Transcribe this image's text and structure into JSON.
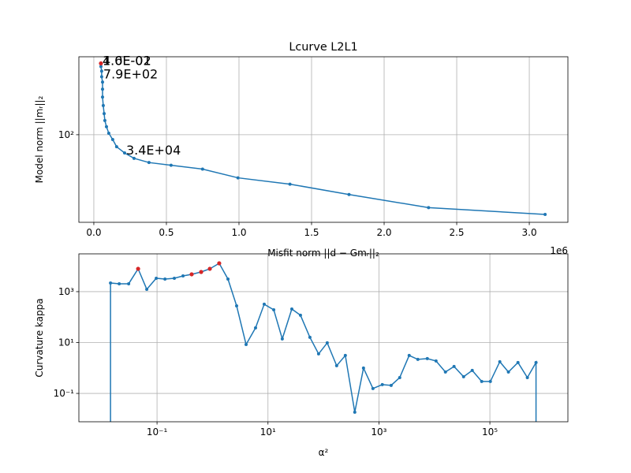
{
  "chart_data": [
    {
      "type": "line",
      "title": "Lcurve L2L1",
      "xlabel": "Misfit norm ||d − Gmᵣ||₂",
      "ylabel": "Model norm ||mᵣ||₂",
      "x_offset_label": "1e6",
      "xlim": [
        -0.103,
        3.266
      ],
      "ylim": [
        18,
        460
      ],
      "ylog": true,
      "grid": true,
      "xticks": [
        {
          "value": 0,
          "label": "0.0"
        },
        0.5,
        {
          "value": 1,
          "label": "1.0"
        },
        1.5,
        {
          "value": 2,
          "label": "2.0"
        },
        2.5,
        {
          "value": 3,
          "label": "3.0"
        }
      ],
      "yticks": [
        {
          "value": 100,
          "label": "10²"
        }
      ],
      "series": [
        {
          "color": "#1f77b4",
          "x": [
            0.049,
            0.049,
            0.054,
            0.054,
            0.06,
            0.06,
            0.06,
            0.065,
            0.071,
            0.076,
            0.087,
            0.103,
            0.13,
            0.157,
            0.212,
            0.277,
            0.38,
            0.532,
            0.749,
            0.993,
            1.351,
            1.758,
            2.306,
            3.109
          ],
          "values": [
            404,
            380,
            347,
            311,
            280,
            244,
            209,
            177,
            151,
            132,
            117,
            103,
            91,
            79,
            70,
            63,
            58,
            55,
            51,
            43,
            38,
            31,
            24,
            21
          ]
        },
        {
          "color": "#d62728",
          "markers_only": true,
          "x": [
            0.049
          ],
          "values": [
            404
          ]
        }
      ],
      "annotations": [
        {
          "text": "1.0E-02",
          "x": 0.049,
          "y": 404
        },
        {
          "text": "4.6E-01",
          "x": 0.049,
          "y": 404
        },
        {
          "text": "7.9E+02",
          "x": 0.054,
          "y": 311
        },
        {
          "text": "3.4E+04",
          "x": 0.212,
          "y": 70
        }
      ]
    },
    {
      "type": "line",
      "xlabel": "α²",
      "ylabel": "Curvature kappa",
      "xlim": [
        0.0039,
        2550000
      ],
      "ylim": [
        0.0077,
        30600
      ],
      "xlog": true,
      "ylog": true,
      "grid": true,
      "xticks": [
        {
          "value": 0.1,
          "label": "10⁻¹"
        },
        {
          "value": 10,
          "label": "10¹"
        },
        {
          "value": 1000,
          "label": "10³"
        },
        {
          "value": 100000,
          "label": "10⁵"
        }
      ],
      "yticks": [
        {
          "value": 0.1,
          "label": "10⁻¹"
        },
        {
          "value": 10,
          "label": "10¹"
        },
        {
          "value": 1000,
          "label": "10³"
        }
      ],
      "series": [
        {
          "color": "#1f77b4",
          "x": [
            0.0145,
            0.0145,
            0.0208,
            0.0308,
            0.0456,
            0.0653,
            0.0968,
            0.139,
            0.205,
            0.294,
            0.421,
            0.624,
            0.895,
            1.32,
            1.9,
            2.72,
            4.03,
            5.97,
            8.55,
            12.7,
            18.1,
            26.9,
            38.5,
            57.0,
            81.7,
            117,
            173,
            248,
            367,
            527,
            780,
            1150,
            1660,
            2370,
            3510,
            5030,
            7450,
            10700,
            15800,
            22600,
            33600,
            48100,
            71200,
            102000,
            151000,
            216000,
            321000,
            474000,
            679000,
            679000
          ],
          "values": [
            0.001,
            2190,
            2040,
            2040,
            7910,
            1240,
            3360,
            3130,
            3360,
            4160,
            4800,
            5940,
            7910,
            13000,
            3130,
            277,
            8.4,
            37.7,
            320,
            194,
            13.9,
            208,
            118,
            16.0,
            3.58,
            9.7,
            1.23,
            3.1,
            0.0183,
            0.99,
            0.156,
            0.222,
            0.207,
            0.42,
            3.1,
            2.17,
            2.33,
            1.89,
            0.695,
            1.15,
            0.453,
            0.8,
            0.295,
            0.295,
            1.76,
            0.695,
            1.64,
            0.42,
            1.64,
            0.001
          ]
        },
        {
          "color": "#d62728",
          "markers_only": true,
          "x": [
            0.0456,
            0.421,
            0.624,
            0.895,
            1.32
          ],
          "values": [
            7910,
            4800,
            5940,
            7910,
            13000
          ]
        }
      ]
    }
  ]
}
